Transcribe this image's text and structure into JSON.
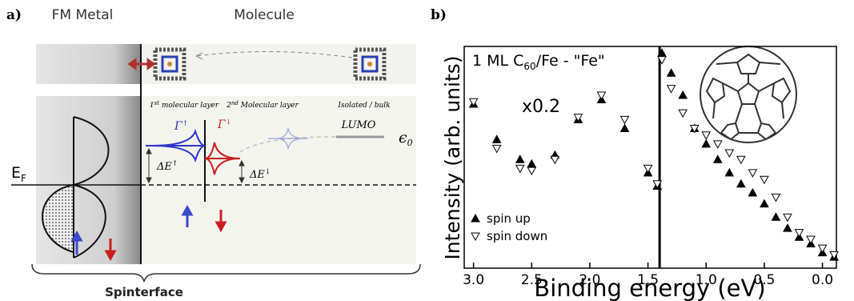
{
  "panel_a": {
    "label": "a)",
    "metal_title": "FM Metal",
    "molecule_title": "Molecule",
    "layers": [
      {
        "base": "1",
        "sup": "st",
        "rest": " molecular layer"
      },
      {
        "base": "2",
        "sup": "nd",
        "rest": " Molecular layer"
      },
      {
        "text": "Isolated / bulk"
      }
    ],
    "lumo": "LUMO",
    "epsilon": {
      "base": "ϵ",
      "sub": "0"
    },
    "gamma_up": {
      "base": "Γ",
      "sup": "↑"
    },
    "gamma_down": {
      "base": "Γ",
      "sup": "↓"
    },
    "delta_up": {
      "base": "ΔE",
      "sup": "↑"
    },
    "delta_down": {
      "base": "ΔE",
      "sup": "↓"
    },
    "fermi": {
      "base": "E",
      "sub": "F"
    },
    "footer": "Spinterface"
  },
  "chart_data": {
    "type": "scatter",
    "label": "b)",
    "title": {
      "base": "1 ML C",
      "sub": "60",
      "rest": "/Fe - \"Fe\""
    },
    "annotation": "x0.2",
    "x_label": "Binding energy (eV)",
    "y_label": "Intensity (arb. units)",
    "x": [
      3.0,
      2.8,
      2.6,
      2.5,
      2.3,
      2.1,
      1.9,
      1.7,
      1.5,
      1.42,
      1.38,
      1.3,
      1.2,
      1.1,
      1.0,
      0.9,
      0.8,
      0.7,
      0.6,
      0.5,
      0.4,
      0.3,
      0.2,
      0.1,
      0.0,
      -0.1
    ],
    "series": [
      {
        "name": "spin up",
        "color": "#000000",
        "marker": "triangle-up",
        "filled": true,
        "values": [
          74,
          58,
          49,
          47,
          51,
          67,
          76,
          63,
          43,
          37,
          97,
          88,
          78,
          63,
          56,
          49,
          43,
          38,
          34,
          29,
          23,
          18,
          14,
          11,
          7,
          5
        ]
      },
      {
        "name": "spin down",
        "color": "#000000",
        "marker": "triangle-down",
        "filled": false,
        "values": [
          75,
          54,
          45,
          44,
          49,
          68,
          78,
          67,
          45,
          38,
          94,
          81,
          70,
          63,
          60,
          56,
          52,
          49,
          43,
          40,
          32,
          23,
          16,
          13,
          9,
          6
        ]
      }
    ],
    "xlim": [
      3.08,
      -0.12
    ],
    "ylim": [
      0,
      100
    ],
    "xticks": [
      {
        "value": 3.0,
        "label": "3.0"
      },
      {
        "value": 2.5,
        "label": "2.5"
      },
      {
        "value": 2.0,
        "label": "2.0"
      },
      {
        "value": 1.5,
        "label": "1.5"
      },
      {
        "value": 1.0,
        "label": "1.0"
      },
      {
        "value": 0.5,
        "label": "0.5"
      },
      {
        "value": 0.0,
        "label": "0.0"
      }
    ],
    "divider_x": 1.4,
    "legend": "lower left"
  }
}
